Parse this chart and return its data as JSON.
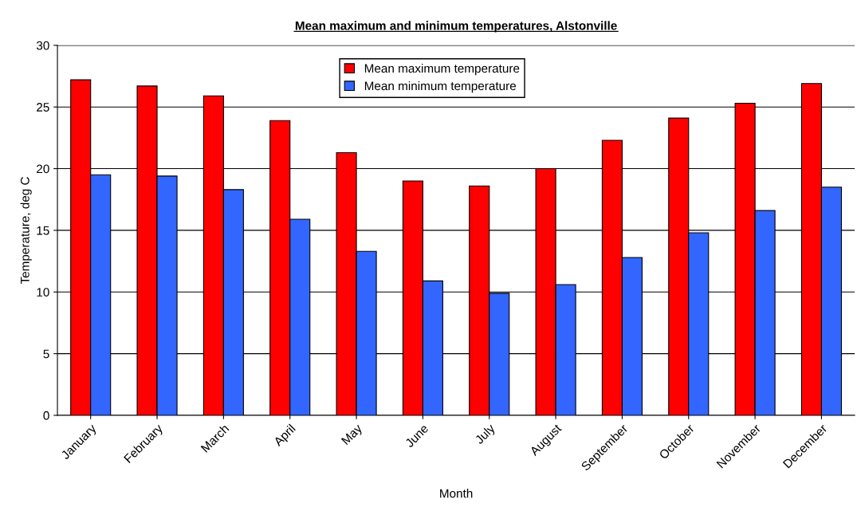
{
  "chart_data": {
    "type": "bar",
    "title": "Mean maximum and minimum temperatures, Alstonville",
    "xlabel": "Month",
    "ylabel": "Temperature, deg C",
    "categories": [
      "January",
      "February",
      "March",
      "April",
      "May",
      "June",
      "July",
      "August",
      "September",
      "October",
      "November",
      "December"
    ],
    "series": [
      {
        "name": "Mean maximum temperature",
        "color": "#ff0000",
        "values": [
          27.2,
          26.7,
          25.9,
          23.9,
          21.3,
          19.0,
          18.6,
          20.0,
          22.3,
          24.1,
          25.3,
          26.9
        ]
      },
      {
        "name": "Mean minimum temperature",
        "color": "#3366ff",
        "values": [
          19.5,
          19.4,
          18.3,
          15.9,
          13.3,
          10.9,
          9.9,
          10.6,
          12.8,
          14.8,
          16.6,
          18.5
        ]
      }
    ],
    "ylim": [
      0,
      30
    ],
    "yticks": [
      0,
      5,
      10,
      15,
      20,
      25,
      30
    ],
    "grid": "y",
    "legend": "top"
  }
}
